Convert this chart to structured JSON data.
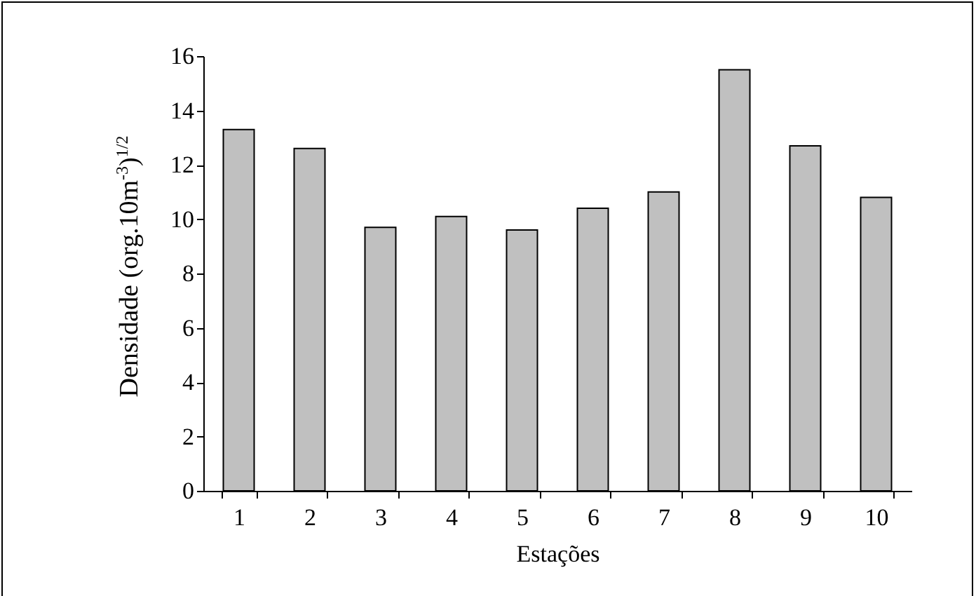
{
  "chart_data": {
    "type": "bar",
    "xlabel": "Estações",
    "ylabel": "Densidade (org.10m$^{-3}$)$^{1/2}$",
    "categories": [
      "1",
      "2",
      "3",
      "4",
      "5",
      "6",
      "7",
      "8",
      "9",
      "10"
    ],
    "values": [
      13.3,
      12.6,
      9.7,
      10.1,
      9.6,
      10.4,
      11.0,
      15.5,
      12.7,
      10.8
    ],
    "color": "#c0c0c0",
    "ylim": [
      0,
      16
    ],
    "yticks": [
      0,
      2,
      4,
      6,
      8,
      10,
      12,
      14,
      16
    ],
    "grid": false
  }
}
